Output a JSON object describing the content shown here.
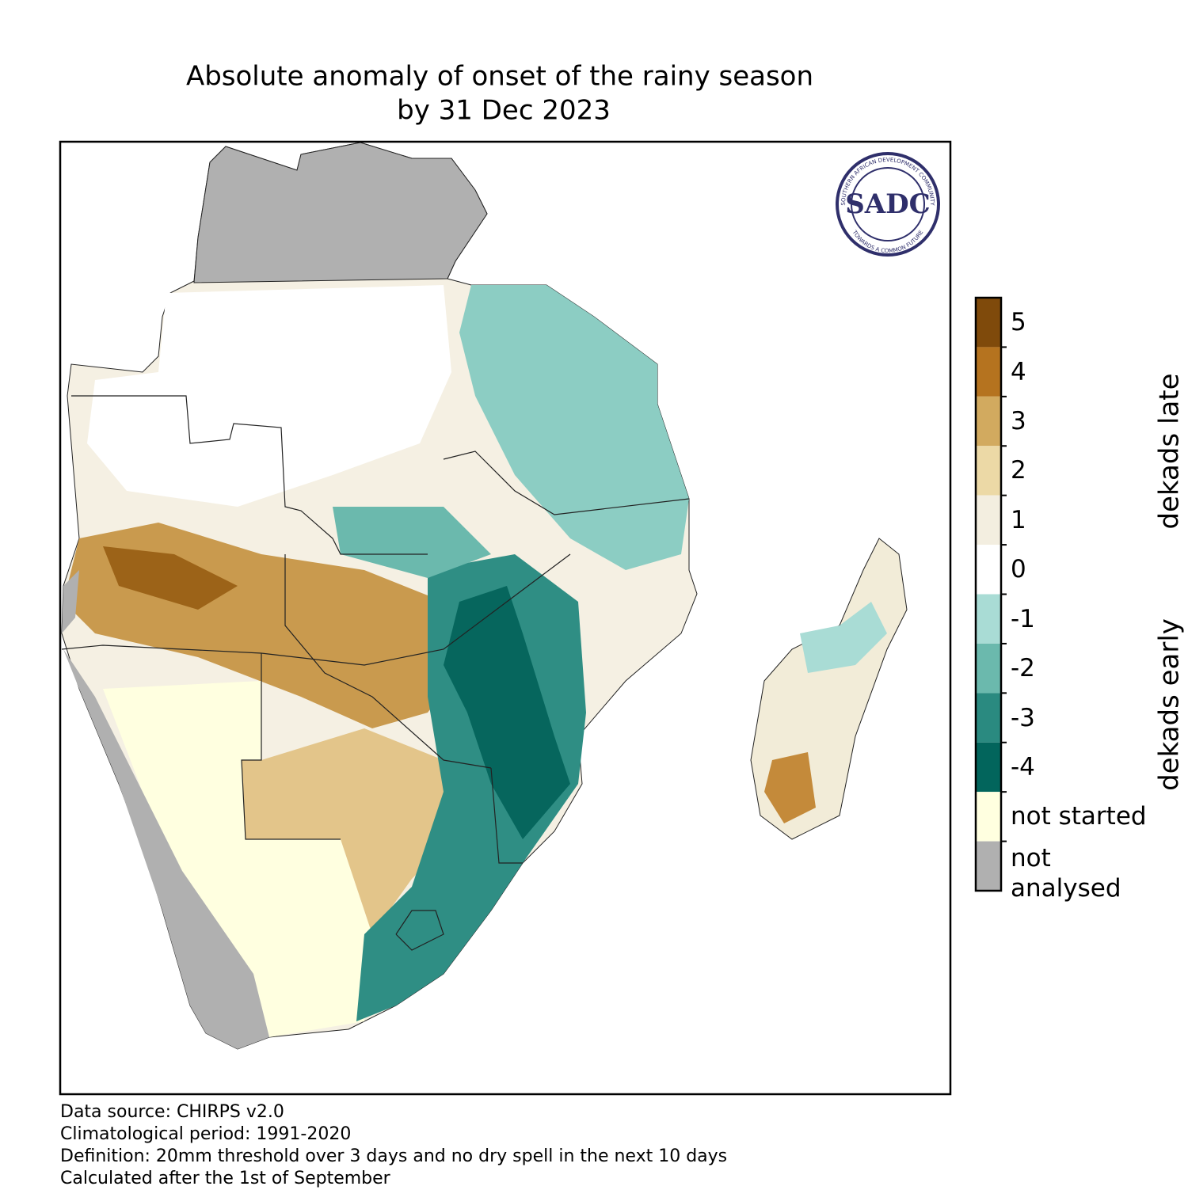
{
  "title": [
    "Absolute anomaly of onset of the rainy season",
    "by 31 Dec 2023"
  ],
  "logo": {
    "text": "SADC",
    "ring_top": "SOUTHERN AFRICAN DEVELOPMENT COMMUNITY",
    "ring_bottom": "TOWARDS A COMMON FUTURE"
  },
  "legend": {
    "items": [
      {
        "label": 5,
        "color": "#7f4a0b"
      },
      {
        "label": 4,
        "color": "#b5731f"
      },
      {
        "label": 3,
        "color": "#d2aa5f"
      },
      {
        "label": 2,
        "color": "#ecd9a6"
      },
      {
        "label": 1,
        "color": "#f3eee0"
      },
      {
        "label": 0,
        "color": "#ffffff"
      },
      {
        "label": -1,
        "color": "#a9dcd5"
      },
      {
        "label": -2,
        "color": "#6bb9ad"
      },
      {
        "label": -3,
        "color": "#2a8a80"
      },
      {
        "label": -4,
        "color": "#02655c"
      },
      {
        "label": "not started",
        "color": "#ffffe0"
      },
      {
        "label": "not analysed",
        "color": "#b0b0b0"
      }
    ],
    "axis_labels": [
      "dekads early",
      "dekads late"
    ]
  },
  "footnotes": [
    "Data source: CHIRPS v2.0",
    "Climatological period: 1991-2020",
    "Definition: 20mm threshold over 3 days and no dry spell in the next 10 days",
    "Calculated after the 1st of September"
  ]
}
